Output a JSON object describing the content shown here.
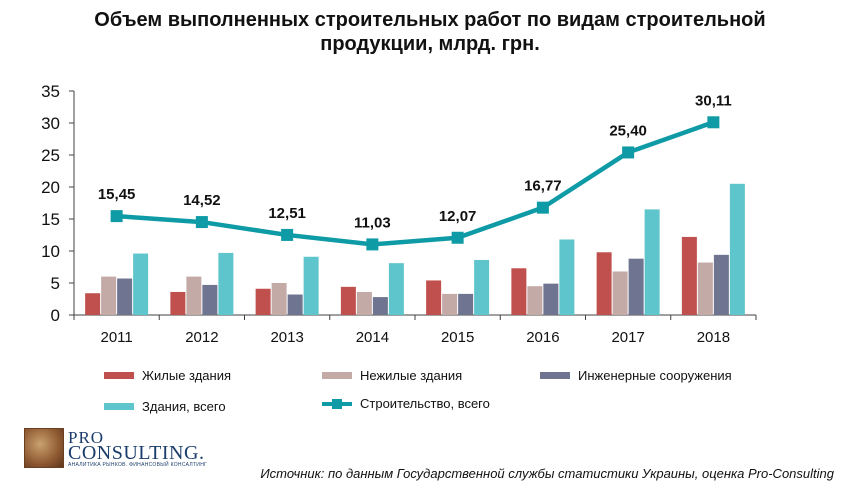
{
  "chart_data": {
    "type": "bar",
    "title_lines": [
      "Объем выполненных строительных работ по видам строительной",
      "продукции, млрд. грн."
    ],
    "categories": [
      "2011",
      "2012",
      "2013",
      "2014",
      "2015",
      "2016",
      "2017",
      "2018"
    ],
    "y_ticks": [
      "0",
      "5",
      "10",
      "15",
      "20",
      "25",
      "30",
      "35"
    ],
    "ylim": [
      0,
      35
    ],
    "grid": false,
    "legend_position": "bottom",
    "series": [
      {
        "name": "Жилые здания",
        "type": "bar",
        "color": "#c0504d",
        "values": [
          3.4,
          3.6,
          4.1,
          4.4,
          5.4,
          7.3,
          9.8,
          12.2
        ]
      },
      {
        "name": "Нежилые здания",
        "type": "bar",
        "color": "#c4aaa6",
        "values": [
          6.0,
          6.0,
          5.0,
          3.6,
          3.3,
          4.5,
          6.8,
          8.2
        ]
      },
      {
        "name": "Инженерные сооружения",
        "type": "bar",
        "color": "#6f7591",
        "values": [
          5.7,
          4.7,
          3.2,
          2.8,
          3.3,
          4.9,
          8.8,
          9.4
        ]
      },
      {
        "name": "Здания, всего",
        "type": "bar",
        "color": "#5ec5cc",
        "values": [
          9.6,
          9.7,
          9.1,
          8.1,
          8.6,
          11.8,
          16.5,
          20.5
        ]
      },
      {
        "name": "Строительство, всего",
        "type": "line",
        "color": "#0f9ba6",
        "values": [
          15.45,
          14.52,
          12.51,
          11.03,
          12.07,
          16.77,
          25.4,
          30.11
        ]
      }
    ],
    "line_labels": [
      "15,45",
      "14,52",
      "12,51",
      "11,03",
      "12,07",
      "16,77",
      "25,40",
      "30,11"
    ]
  },
  "footer": {
    "source": "Источник: по данным Государственной службы статистики Украины, оценка Pro-Consulting",
    "logo_pro": "PRO",
    "logo_consulting": "CONSULTING.",
    "logo_tagline": "АНАЛИТИКА РЫНКОВ. ФИНАНСОВЫЙ КОНСАЛТИНГ"
  }
}
